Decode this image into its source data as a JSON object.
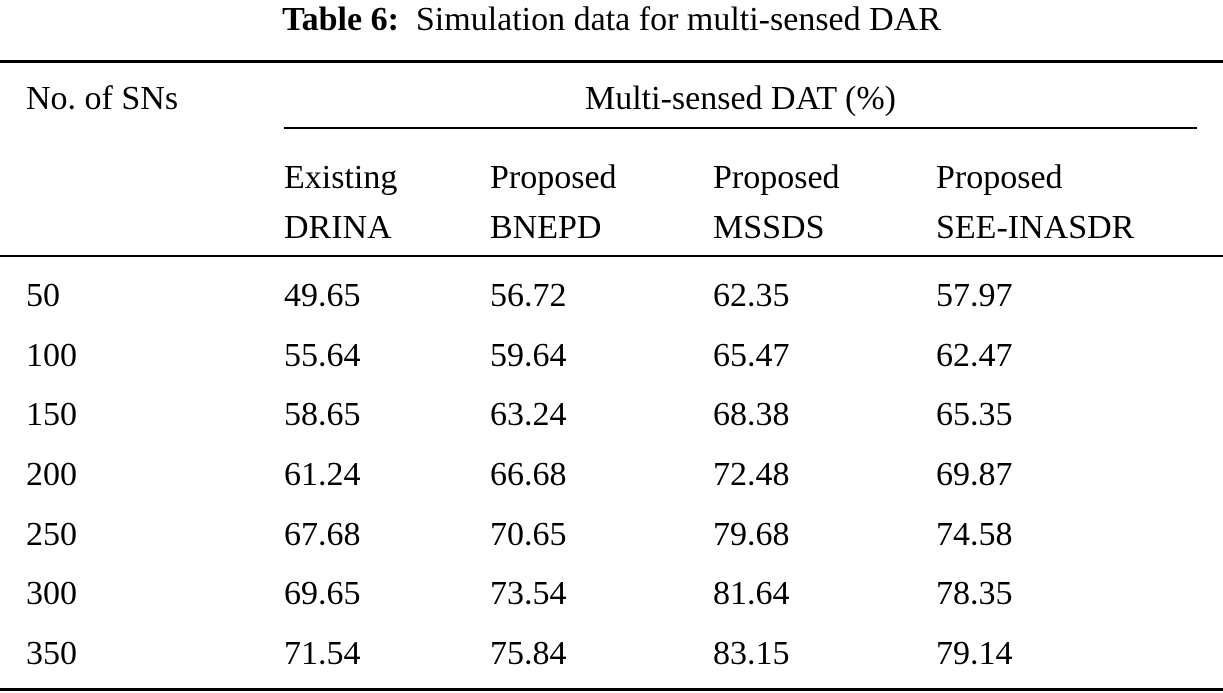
{
  "caption": {
    "label": "Table 6:",
    "text": "Simulation data for multi-sensed DAR"
  },
  "table": {
    "stub_header": "No. of SNs",
    "group_header": "Multi-sensed DAT (%)",
    "columns": [
      {
        "line1": "Existing",
        "line2": "DRINA"
      },
      {
        "line1": "Proposed",
        "line2": "BNEPD"
      },
      {
        "line1": "Proposed",
        "line2": "MSSDS"
      },
      {
        "line1": "Proposed",
        "line2": "SEE-INASDR"
      }
    ],
    "rows": [
      {
        "sns": "50",
        "values": [
          "49.65",
          "56.72",
          "62.35",
          "57.97"
        ]
      },
      {
        "sns": "100",
        "values": [
          "55.64",
          "59.64",
          "65.47",
          "62.47"
        ]
      },
      {
        "sns": "150",
        "values": [
          "58.65",
          "63.24",
          "68.38",
          "65.35"
        ]
      },
      {
        "sns": "200",
        "values": [
          "61.24",
          "66.68",
          "72.48",
          "69.87"
        ]
      },
      {
        "sns": "250",
        "values": [
          "67.68",
          "70.65",
          "79.68",
          "74.58"
        ]
      },
      {
        "sns": "300",
        "values": [
          "69.65",
          "73.54",
          "81.64",
          "78.35"
        ]
      },
      {
        "sns": "350",
        "values": [
          "71.54",
          "75.84",
          "83.15",
          "79.14"
        ]
      }
    ]
  }
}
